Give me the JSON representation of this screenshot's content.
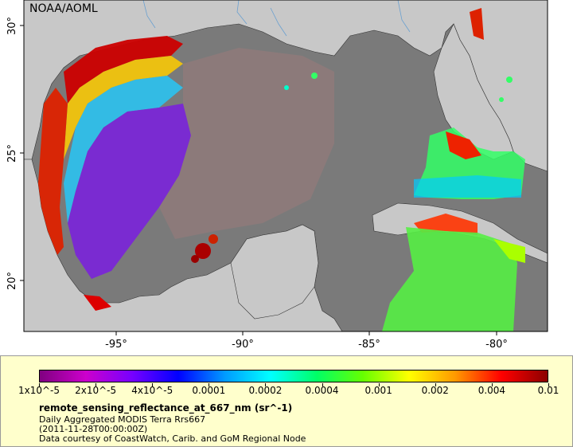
{
  "watermark": "NOAA/AOML",
  "axes": {
    "x_ticks": [
      "-95°",
      "-90°",
      "-85°",
      "-80°"
    ],
    "y_ticks": [
      "30°",
      "25°",
      "20°"
    ]
  },
  "colors": {
    "land": "#c8c8c8",
    "nodata": "#7a7a7a",
    "legend_bg": "#ffffcc"
  },
  "colorbar": {
    "ticks": [
      "1x10^-5",
      "2x10^-5",
      "4x10^-5",
      "0.0001",
      "0.0002",
      "0.0004",
      "0.001",
      "0.002",
      "0.004",
      "0.01"
    ],
    "gradient": [
      "#800080",
      "#cc00cc",
      "#7700ff",
      "#0000ff",
      "#0099ff",
      "#00ffff",
      "#00ff66",
      "#66ff00",
      "#ffff00",
      "#ff9900",
      "#ff0000",
      "#8b0000"
    ]
  },
  "variable": "remote_sensing_reflectance_at_667_nm (sr^-1)",
  "source": "Daily Aggregated MODIS Terra Rrs667",
  "time": "(2011-11-28T00:00:00Z)",
  "credit": "Data courtesy of CoastWatch, Carib. and GoM Regional Node"
}
